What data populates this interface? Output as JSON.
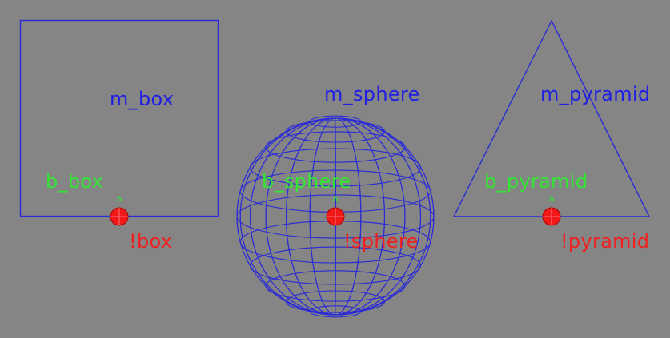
{
  "viewport": {
    "background": "#858585",
    "wire_color": "#2a2ad8",
    "bone_color": "#33e633",
    "pivot_color": "#f02020"
  },
  "objects": [
    {
      "id": "box",
      "mesh_label": "m_box",
      "bone_label": "b_box",
      "pivot_label": "!box"
    },
    {
      "id": "sphere",
      "mesh_label": "m_sphere",
      "bone_label": "b_sphere",
      "pivot_label": "!sphere"
    },
    {
      "id": "pyramid",
      "mesh_label": "m_pyramid",
      "bone_label": "b_pyramid",
      "pivot_label": "!pyramid"
    }
  ]
}
